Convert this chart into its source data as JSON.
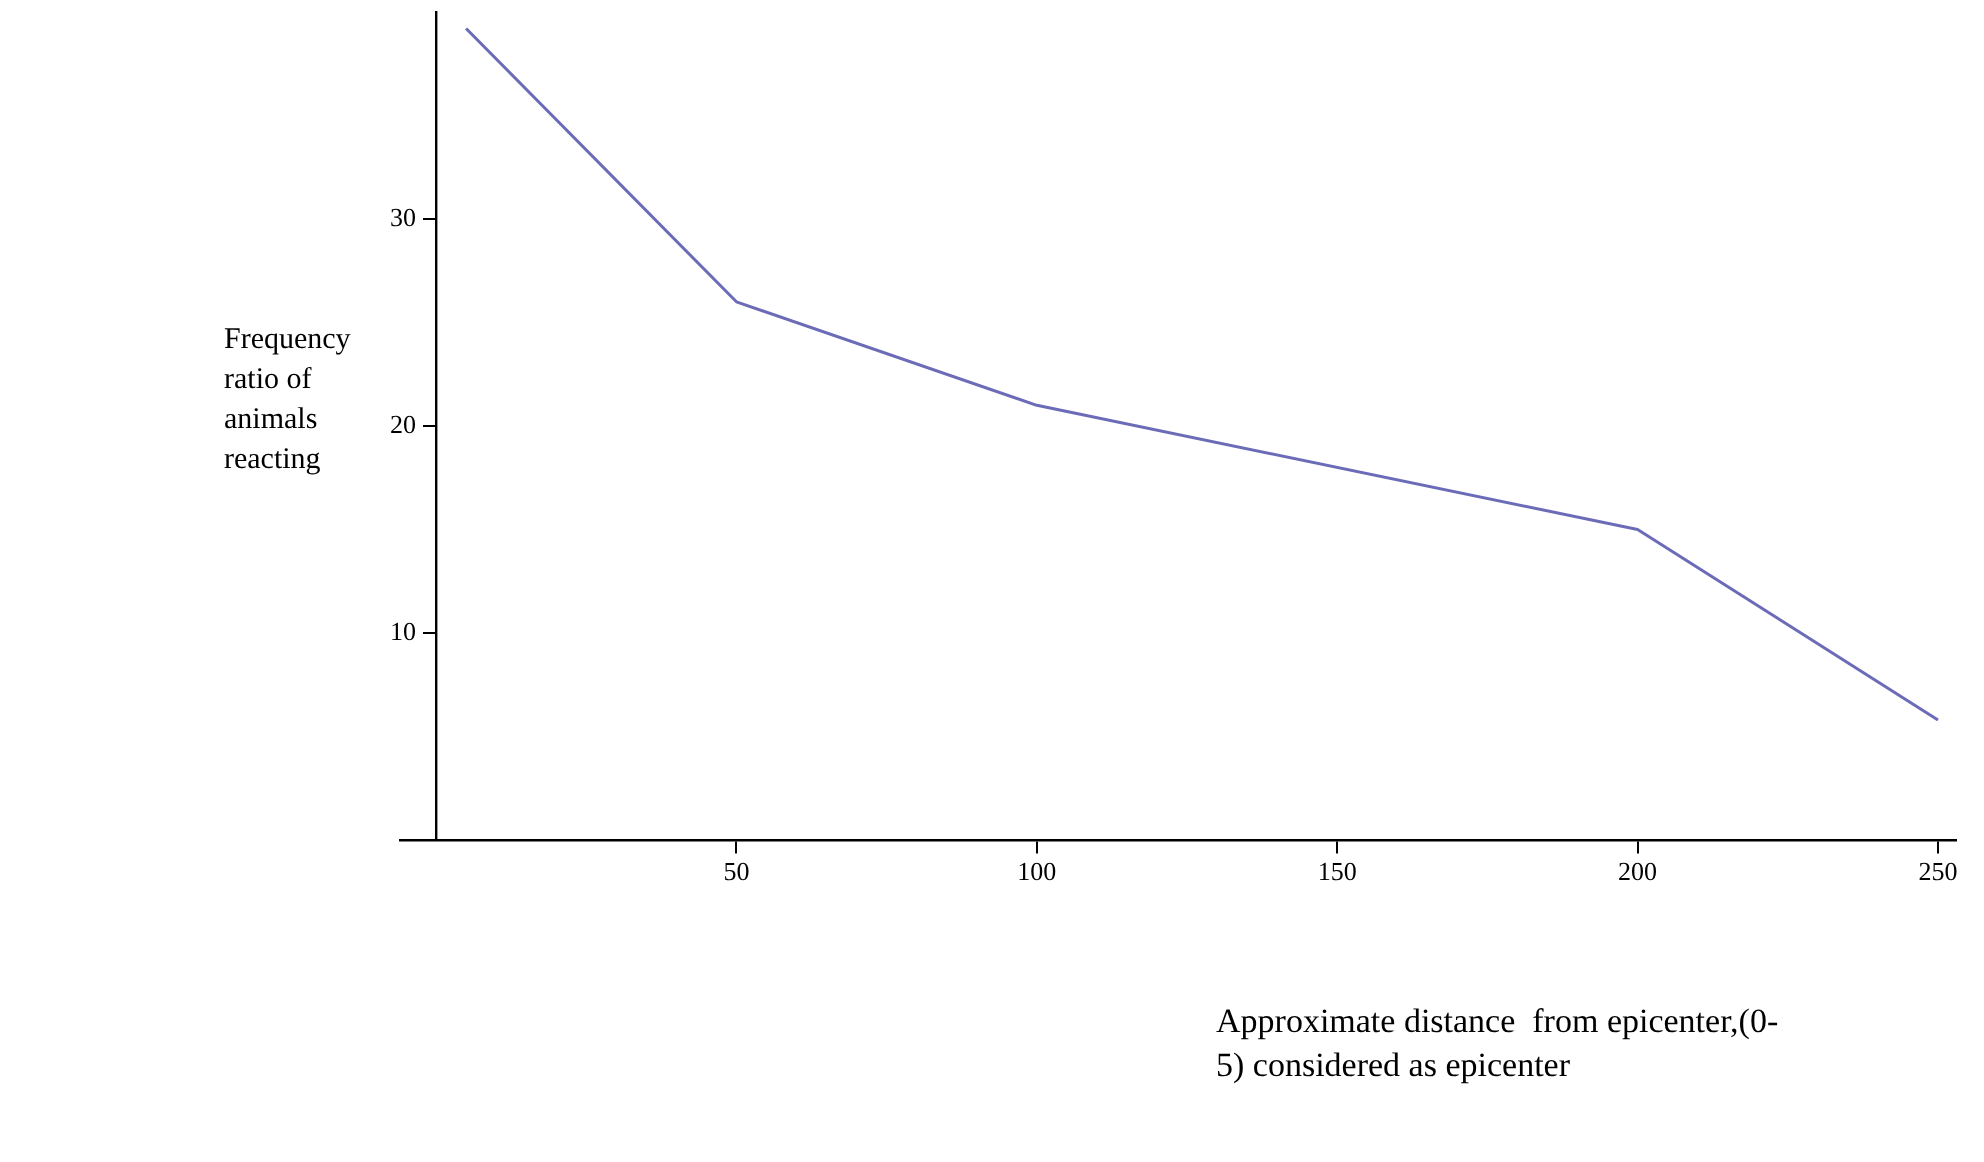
{
  "chart_data": {
    "type": "line",
    "xlabel": "Approximate distance  from epicenter,(0-5) considered as epicenter",
    "ylabel": "Frequency ratio of animals reacting",
    "x": [
      5,
      50,
      100,
      200,
      250
    ],
    "series": [
      {
        "color": "#6b6bb8",
        "values": [
          39.2,
          26,
          21,
          15,
          5.8
        ]
      }
    ],
    "xlim": [
      -6,
      253
    ],
    "ylim": [
      0,
      40
    ],
    "xticks": [
      50,
      100,
      150,
      200,
      250
    ],
    "yticks": [
      10,
      20,
      30
    ],
    "grid": false,
    "legend": false,
    "marker": "none",
    "line_style": "solid"
  }
}
